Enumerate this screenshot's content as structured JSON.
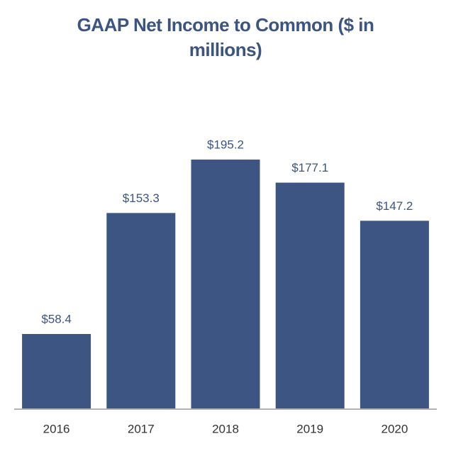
{
  "chart_data": {
    "type": "bar",
    "title": "GAAP Net Income to Common ($ in millions)",
    "categories": [
      "2016",
      "2017",
      "2018",
      "2019",
      "2020"
    ],
    "values": [
      58.4,
      153.3,
      195.2,
      177.1,
      147.2
    ],
    "value_labels": [
      "$58.4",
      "$153.3",
      "$195.2",
      "$177.1",
      "$147.2"
    ],
    "color": "#3c5582"
  }
}
